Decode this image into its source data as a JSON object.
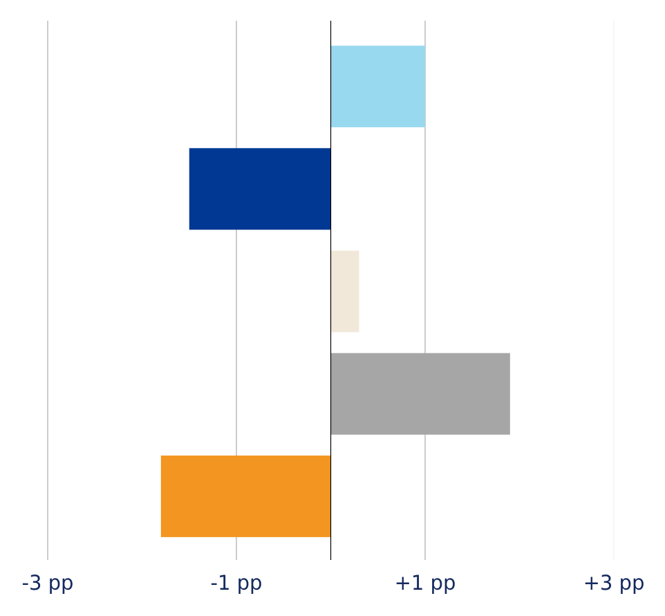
{
  "chart_data": {
    "type": "bar",
    "orientation": "horizontal",
    "categories": [
      null,
      null,
      null,
      null,
      null
    ],
    "values": [
      1.0,
      -1.5,
      0.3,
      1.9,
      -1.8
    ],
    "colors": [
      "#99d9f0",
      "#003893",
      "#f2e8d9",
      "#a6a6a6",
      "#f39521"
    ],
    "xlim": [
      -3,
      3
    ],
    "xticks": [
      {
        "value": -3,
        "label": "-3 pp"
      },
      {
        "value": -1,
        "label": "-1 pp"
      },
      {
        "value": 1,
        "label": "+1 pp"
      },
      {
        "value": 3,
        "label": "+3 pp"
      }
    ],
    "grid": true
  }
}
